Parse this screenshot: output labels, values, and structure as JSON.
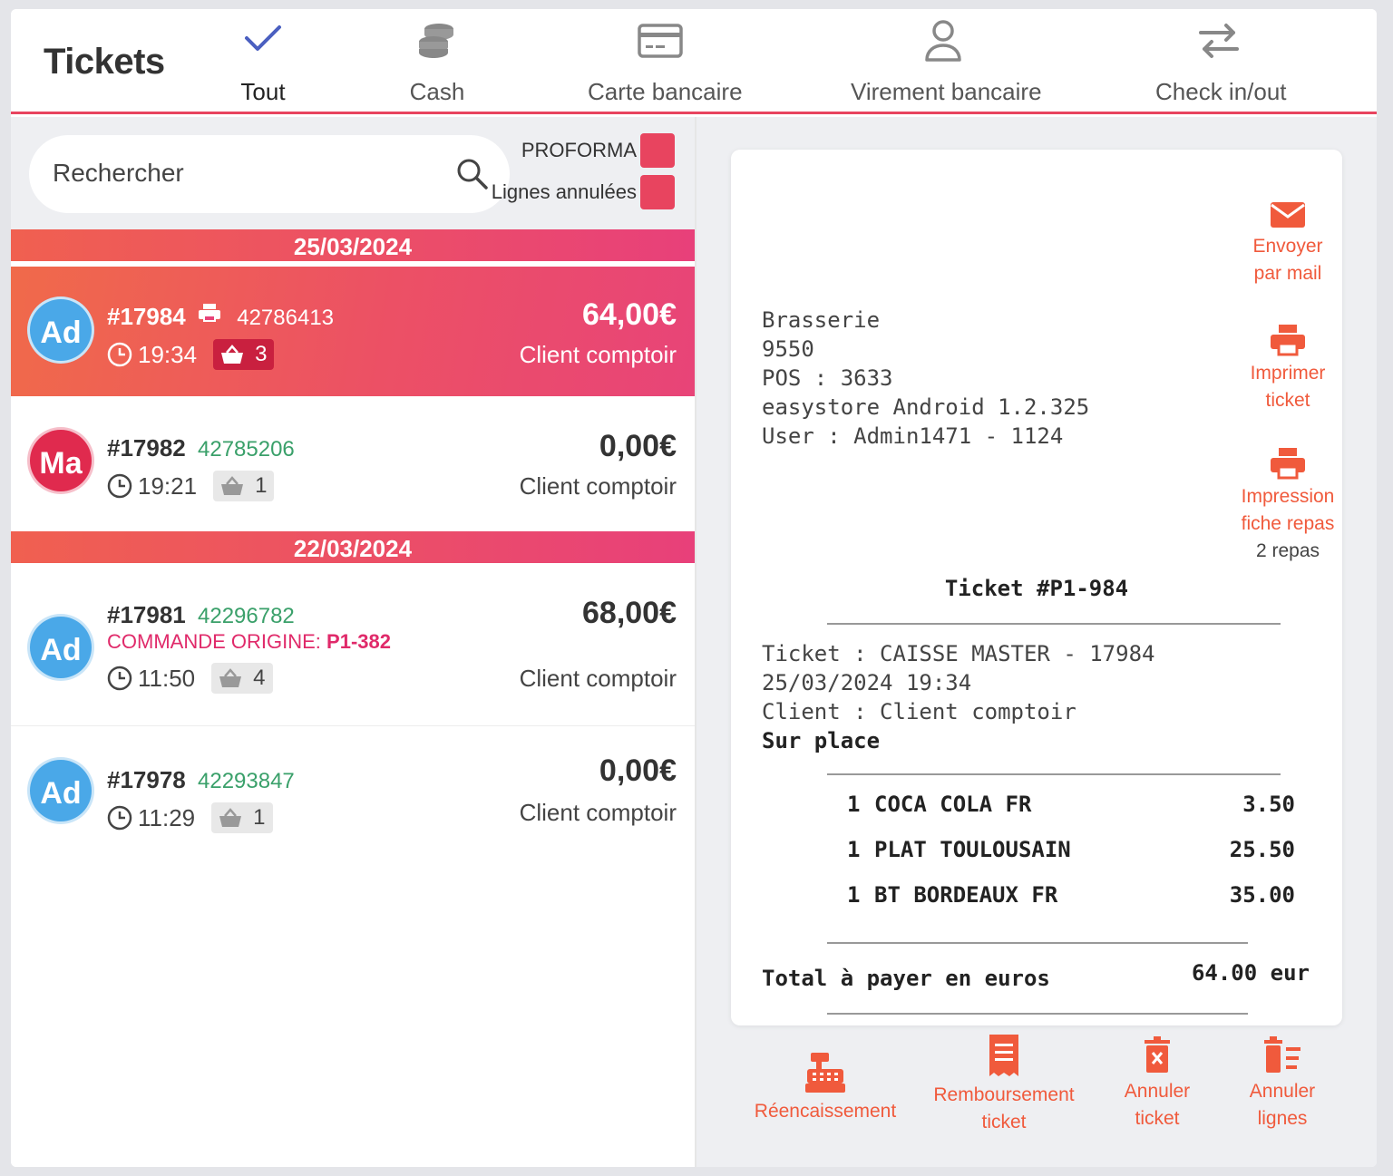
{
  "header": {
    "title": "Tickets",
    "tabs": [
      {
        "label": "Tout",
        "icon": "check-icon",
        "active": true
      },
      {
        "label": "Cash",
        "icon": "coins-icon"
      },
      {
        "label": "Carte bancaire",
        "icon": "credit-card-icon"
      },
      {
        "label": "Virement bancaire",
        "icon": "user-icon"
      },
      {
        "label": "Check in/out",
        "icon": "swap-arrows-icon"
      }
    ]
  },
  "search": {
    "placeholder": "Rechercher"
  },
  "filters": {
    "proforma": "PROFORMA",
    "cancelled_lines": "Lignes annulées"
  },
  "groups": [
    {
      "date": "25/03/2024"
    },
    {
      "date": "22/03/2024"
    }
  ],
  "tickets": [
    {
      "avatar": "Ad",
      "number": "#17984",
      "ref": "42786413",
      "time": "19:34",
      "items": "3",
      "amount": "64,00€",
      "client": "Client comptoir",
      "selected": true,
      "printed": true
    },
    {
      "avatar": "Ma",
      "number": "#17982",
      "ref": "42785206",
      "time": "19:21",
      "items": "1",
      "amount": "0,00€",
      "client": "Client comptoir"
    },
    {
      "avatar": "Ad",
      "number": "#17981",
      "ref": "42296782",
      "origin_label": "COMMANDE ORIGINE:",
      "origin_value": "P1-382",
      "time": "11:50",
      "items": "4",
      "amount": "68,00€",
      "client": "Client comptoir"
    },
    {
      "avatar": "Ad",
      "number": "#17978",
      "ref": "42293847",
      "time": "11:29",
      "items": "1",
      "amount": "0,00€",
      "client": "Client comptoir"
    }
  ],
  "receipt": {
    "header_lines": [
      "Brasserie",
      "9550",
      "POS : 3633",
      "easystore Android 1.2.325",
      "User : Admin1471 - 1124"
    ],
    "title": "Ticket #P1-984",
    "info_lines": [
      "Ticket : CAISSE MASTER - 17984",
      "25/03/2024 19:34",
      "Client : Client comptoir"
    ],
    "service": "Sur place",
    "items": [
      {
        "qty": "1",
        "name": "COCA COLA FR",
        "price": "3.50"
      },
      {
        "qty": "1",
        "name": "PLAT TOULOUSAIN",
        "price": "25.50"
      },
      {
        "qty": "1",
        "name": "BT BORDEAUX FR",
        "price": "35.00"
      }
    ],
    "total_label": "Total à payer en euros",
    "total_value": "64.00 eur"
  },
  "side_actions": {
    "email_1": "Envoyer",
    "email_2": "par mail",
    "print_1": "Imprimer",
    "print_2": "ticket",
    "meal_1": "Impression",
    "meal_2": "fiche repas",
    "meal_3": "2 repas"
  },
  "bottom_actions": {
    "recash": "Réencaissement",
    "refund_1": "Remboursement",
    "refund_2": "ticket",
    "cancel_1": "Annuler",
    "cancel_2": "ticket",
    "cancel_lines_1": "Annuler",
    "cancel_lines_2": "lignes"
  },
  "colors": {
    "accent": "#e8445f",
    "action": "#f05a3c",
    "ref_green": "#3aa06a",
    "avatar_blue": "#4aa8e8",
    "avatar_red": "#e02a4e"
  }
}
